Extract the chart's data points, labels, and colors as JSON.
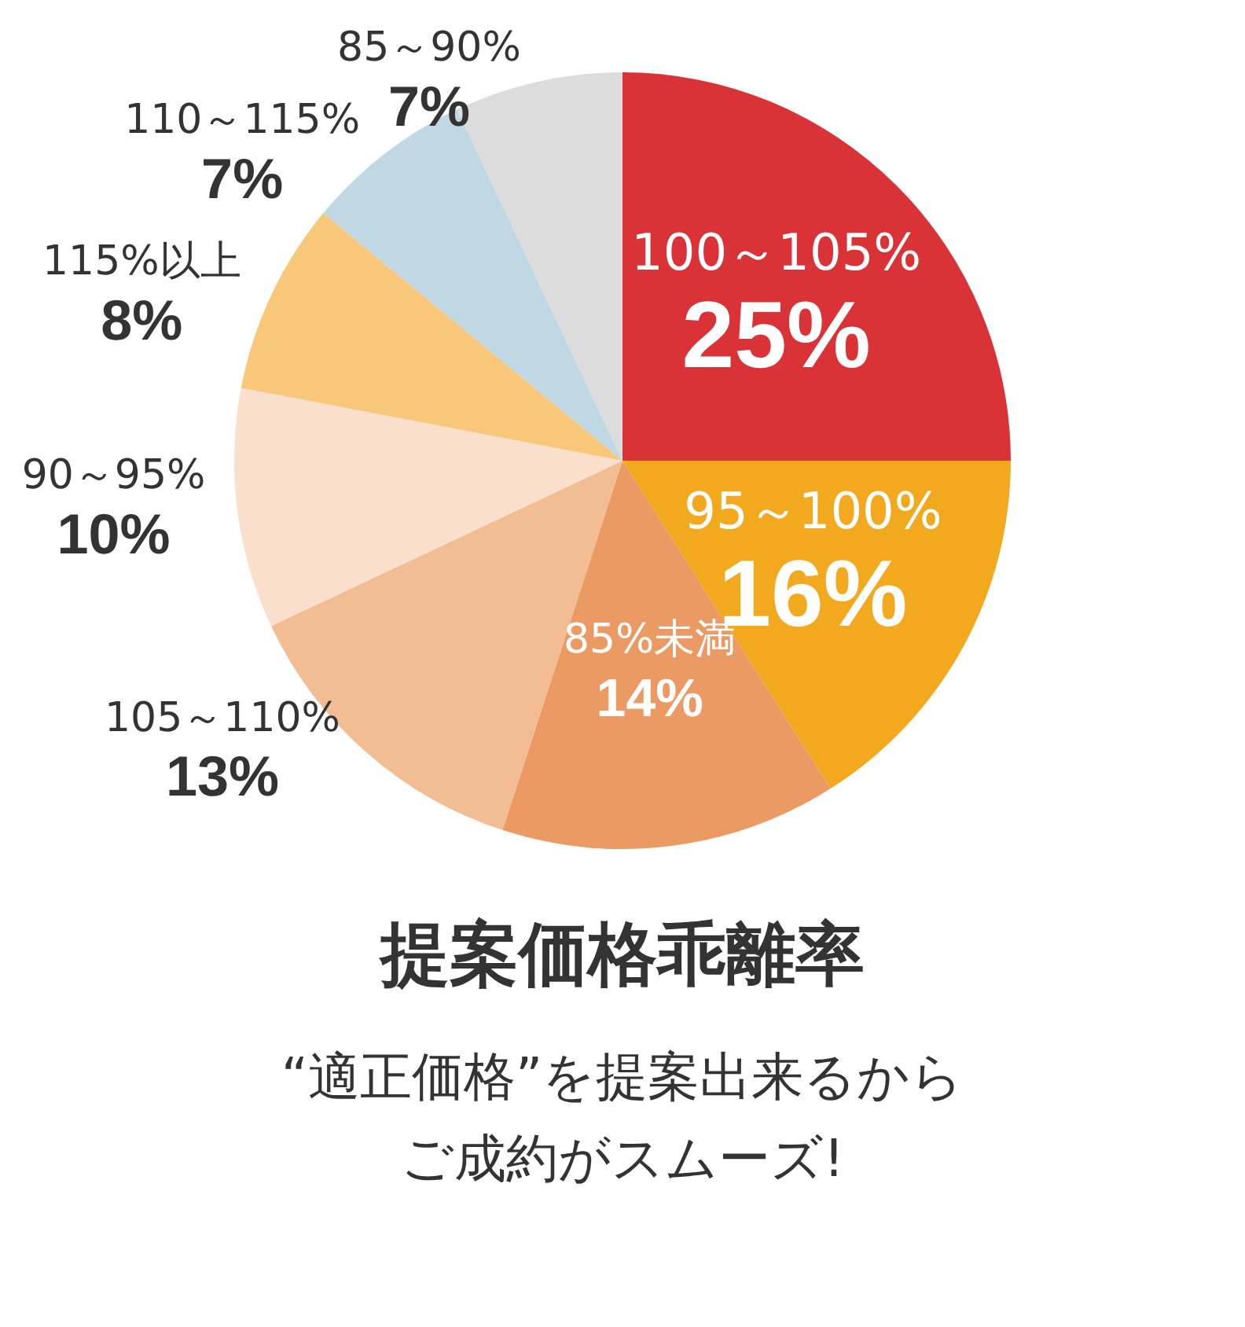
{
  "chart_data": {
    "type": "pie",
    "title": "提案価格乖離率",
    "subtitle": "“適正価格”を提案出来るからご成約がスムーズ!",
    "categories": [
      "100～105%",
      "95～100%",
      "85%未満",
      "105～110%",
      "90～95%",
      "115%以上",
      "110～115%",
      "85～90%"
    ],
    "values": [
      25,
      16,
      14,
      13,
      10,
      8,
      7,
      7
    ],
    "value_labels": [
      "25%",
      "16%",
      "14%",
      "13%",
      "10%",
      "8%",
      "7%",
      "7%"
    ],
    "colors": [
      "#d93338",
      "#f2a91e",
      "#ec9a64",
      "#f2bd92",
      "#fadfcc",
      "#f8c77a",
      "#c0d8e4",
      "#dcdcdc"
    ],
    "legend": false
  }
}
